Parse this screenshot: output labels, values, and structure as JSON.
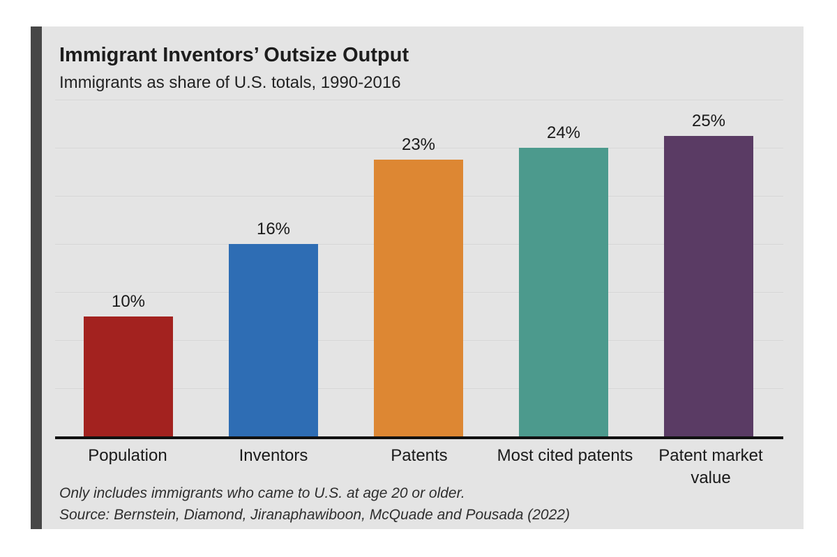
{
  "accent_color": "#474747",
  "card_bg": "#e4e4e4",
  "chart_data": {
    "type": "bar",
    "title": "Immigrant Inventors’ Outsize Output",
    "subtitle": "Immigrants as share of U.S. totals, 1990-2016",
    "categories": [
      "Population",
      "Inventors",
      "Patents",
      "Most cited patents",
      "Patent market value"
    ],
    "values": [
      10,
      16,
      23,
      24,
      25
    ],
    "value_labels": [
      "10%",
      "16%",
      "23%",
      "24%",
      "25%"
    ],
    "bar_colors": [
      "#a3221f",
      "#2e6db4",
      "#dd8733",
      "#4c9a8d",
      "#5a3b64"
    ],
    "xlabel": "",
    "ylabel": "",
    "ylim": [
      0,
      28
    ],
    "gridline_values": [
      4,
      8,
      12,
      16,
      20,
      24,
      28
    ],
    "gridline_color": "#cecece",
    "axis_line_color": "#111111",
    "grid": "horizontal only, no tick labels shown",
    "legend": "none"
  },
  "footer": {
    "note": "Only includes immigrants who came to U.S. at age 20 or older.",
    "source": "Source: Bernstein, Diamond, Jiranaphawiboon, McQuade and Pousada (2022)"
  }
}
